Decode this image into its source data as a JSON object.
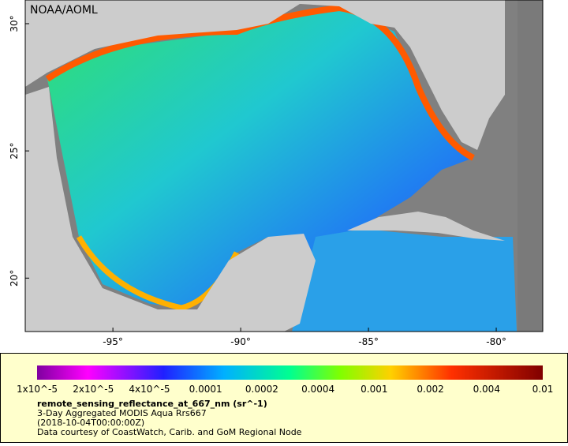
{
  "map": {
    "credit": "NOAA/AOML",
    "lon_range": [
      -98.43,
      -78.18
    ],
    "lat_range": [
      17.9,
      30.93
    ],
    "lon_ticks": [
      {
        "value": -95,
        "label": "-95°"
      },
      {
        "value": -90,
        "label": "-90°"
      },
      {
        "value": -85,
        "label": "-85°"
      },
      {
        "value": -80,
        "label": "-80°"
      }
    ],
    "lat_ticks": [
      {
        "value": 30,
        "label": "30°"
      },
      {
        "value": 25,
        "label": "25°"
      },
      {
        "value": 20,
        "label": "20°"
      }
    ]
  },
  "colorbar": {
    "ticks": [
      {
        "value": 1e-05,
        "label": "1x10^-5"
      },
      {
        "value": 2e-05,
        "label": "2x10^-5"
      },
      {
        "value": 4e-05,
        "label": "4x10^-5"
      },
      0.0001,
      0.0002,
      0.0004,
      0.001,
      0.002,
      0.004,
      0.01
    ]
  },
  "caption": {
    "variable": "remote_sensing_reflectance_at_667_nm (sr^-1)",
    "dataset": "3-Day Aggregated MODIS Aqua Rrs667",
    "time": "(2018-10-04T00:00:00Z)",
    "courtesy": "Data courtesy of CoastWatch, Carib. and GoM Regional Node"
  }
}
